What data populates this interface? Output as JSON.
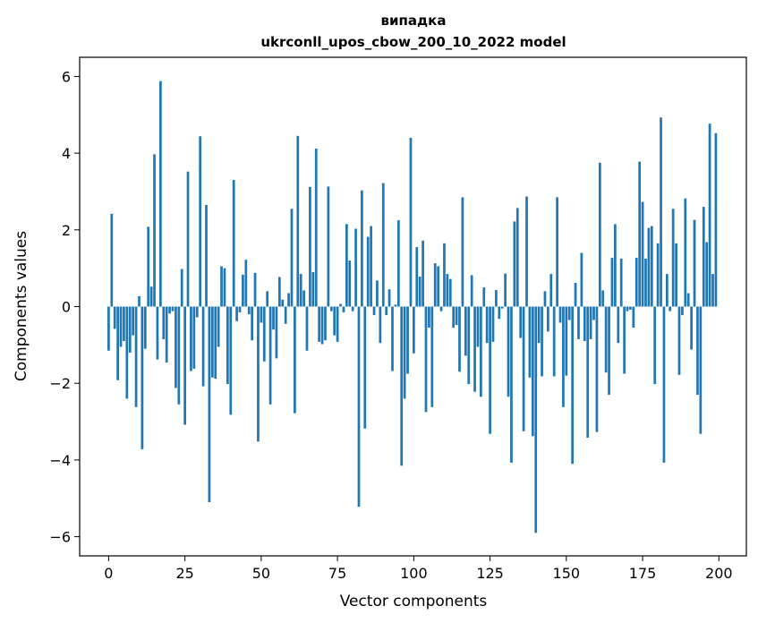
{
  "chart_data": {
    "type": "bar",
    "title": "випадка",
    "subtitle": "ukrconll_upos_cbow_200_10_2022 model",
    "xlabel": "Vector components",
    "ylabel": "Components values",
    "xlim": [
      -9.5,
      209
    ],
    "ylim": [
      -6.5,
      6.5
    ],
    "xticks": [
      0,
      25,
      50,
      75,
      100,
      125,
      150,
      175,
      200
    ],
    "yticks": [
      -6,
      -4,
      -2,
      0,
      2,
      4,
      6
    ],
    "color": "#1f77b4",
    "grid": false,
    "x": [
      0,
      1,
      2,
      3,
      4,
      5,
      6,
      7,
      8,
      9,
      10,
      11,
      12,
      13,
      14,
      15,
      16,
      17,
      18,
      19,
      20,
      21,
      22,
      23,
      24,
      25,
      26,
      27,
      28,
      29,
      30,
      31,
      32,
      33,
      34,
      35,
      36,
      37,
      38,
      39,
      40,
      41,
      42,
      43,
      44,
      45,
      46,
      47,
      48,
      49,
      50,
      51,
      52,
      53,
      54,
      55,
      56,
      57,
      58,
      59,
      60,
      61,
      62,
      63,
      64,
      65,
      66,
      67,
      68,
      69,
      70,
      71,
      72,
      73,
      74,
      75,
      76,
      77,
      78,
      79,
      80,
      81,
      82,
      83,
      84,
      85,
      86,
      87,
      88,
      89,
      90,
      91,
      92,
      93,
      94,
      95,
      96,
      97,
      98,
      99,
      100,
      101,
      102,
      103,
      104,
      105,
      106,
      107,
      108,
      109,
      110,
      111,
      112,
      113,
      114,
      115,
      116,
      117,
      118,
      119,
      120,
      121,
      122,
      123,
      124,
      125,
      126,
      127,
      128,
      129,
      130,
      131,
      132,
      133,
      134,
      135,
      136,
      137,
      138,
      139,
      140,
      141,
      142,
      143,
      144,
      145,
      146,
      147,
      148,
      149,
      150,
      151,
      152,
      153,
      154,
      155,
      156,
      157,
      158,
      159,
      160,
      161,
      162,
      163,
      164,
      165,
      166,
      167,
      168,
      169,
      170,
      171,
      172,
      173,
      174,
      175,
      176,
      177,
      178,
      179,
      180,
      181,
      182,
      183,
      184,
      185,
      186,
      187,
      188,
      189,
      190,
      191,
      192,
      193,
      194,
      195,
      196,
      197,
      198,
      199
    ],
    "values": [
      -1.15,
      2.42,
      -0.58,
      -1.92,
      -1.05,
      -0.9,
      -2.4,
      -1.2,
      -0.75,
      -2.62,
      0.27,
      -3.72,
      -1.1,
      2.08,
      0.52,
      3.97,
      -1.38,
      5.88,
      -0.85,
      -1.46,
      -0.18,
      -0.12,
      -2.12,
      -2.55,
      0.98,
      -3.08,
      3.52,
      -1.68,
      -1.62,
      -0.28,
      4.44,
      -2.08,
      2.65,
      -5.1,
      -1.85,
      -1.88,
      -1.05,
      1.05,
      1.0,
      -2.02,
      -2.82,
      3.3,
      -0.38,
      -0.15,
      0.83,
      1.22,
      -0.2,
      -0.88,
      0.88,
      -3.52,
      -0.42,
      -1.43,
      0.4,
      -2.55,
      -0.6,
      -1.35,
      0.77,
      0.18,
      -0.45,
      0.35,
      2.55,
      -2.78,
      4.45,
      0.85,
      0.42,
      -1.15,
      3.12,
      0.9,
      4.12,
      -0.92,
      -0.98,
      -0.88,
      3.13,
      -0.12,
      -0.75,
      -0.92,
      0.07,
      -0.15,
      2.15,
      1.2,
      -0.12,
      2.03,
      -5.22,
      3.03,
      -3.18,
      1.82,
      2.1,
      -0.22,
      0.68,
      -0.95,
      3.22,
      -0.22,
      0.45,
      -1.68,
      0.05,
      2.25,
      -4.15,
      -2.4,
      -1.75,
      4.4,
      -1.22,
      1.55,
      0.78,
      1.72,
      -2.75,
      -0.55,
      -2.62,
      1.13,
      1.05,
      -0.12,
      1.65,
      0.85,
      0.72,
      -0.55,
      -0.48,
      -1.7,
      2.85,
      -1.28,
      -2.02,
      0.82,
      -2.22,
      -1.05,
      -2.35,
      0.5,
      -0.95,
      -3.32,
      -0.92,
      0.43,
      -0.32,
      -0.05,
      0.86,
      -2.35,
      -4.07,
      2.22,
      2.57,
      -0.82,
      -3.25,
      2.87,
      -1.85,
      -3.38,
      -5.9,
      -0.95,
      -1.82,
      0.4,
      -0.65,
      0.85,
      -1.82,
      2.85,
      -0.42,
      -2.62,
      -1.8,
      -0.35,
      -4.1,
      0.62,
      -0.85,
      1.4,
      -0.9,
      -3.42,
      -0.85,
      -0.35,
      -3.27,
      3.75,
      0.42,
      -1.72,
      -2.3,
      1.27,
      2.15,
      -0.95,
      1.25,
      -1.75,
      -0.12,
      -0.08,
      -0.55,
      1.27,
      3.78,
      2.73,
      1.25,
      2.05,
      2.1,
      -2.02,
      1.65,
      4.93,
      -4.07,
      0.85,
      -0.12,
      2.55,
      1.65,
      -1.78,
      -0.22,
      2.82,
      0.35,
      -1.12,
      2.26,
      -2.3,
      -3.32,
      2.6,
      1.68,
      4.77,
      0.85,
      4.52
    ]
  }
}
